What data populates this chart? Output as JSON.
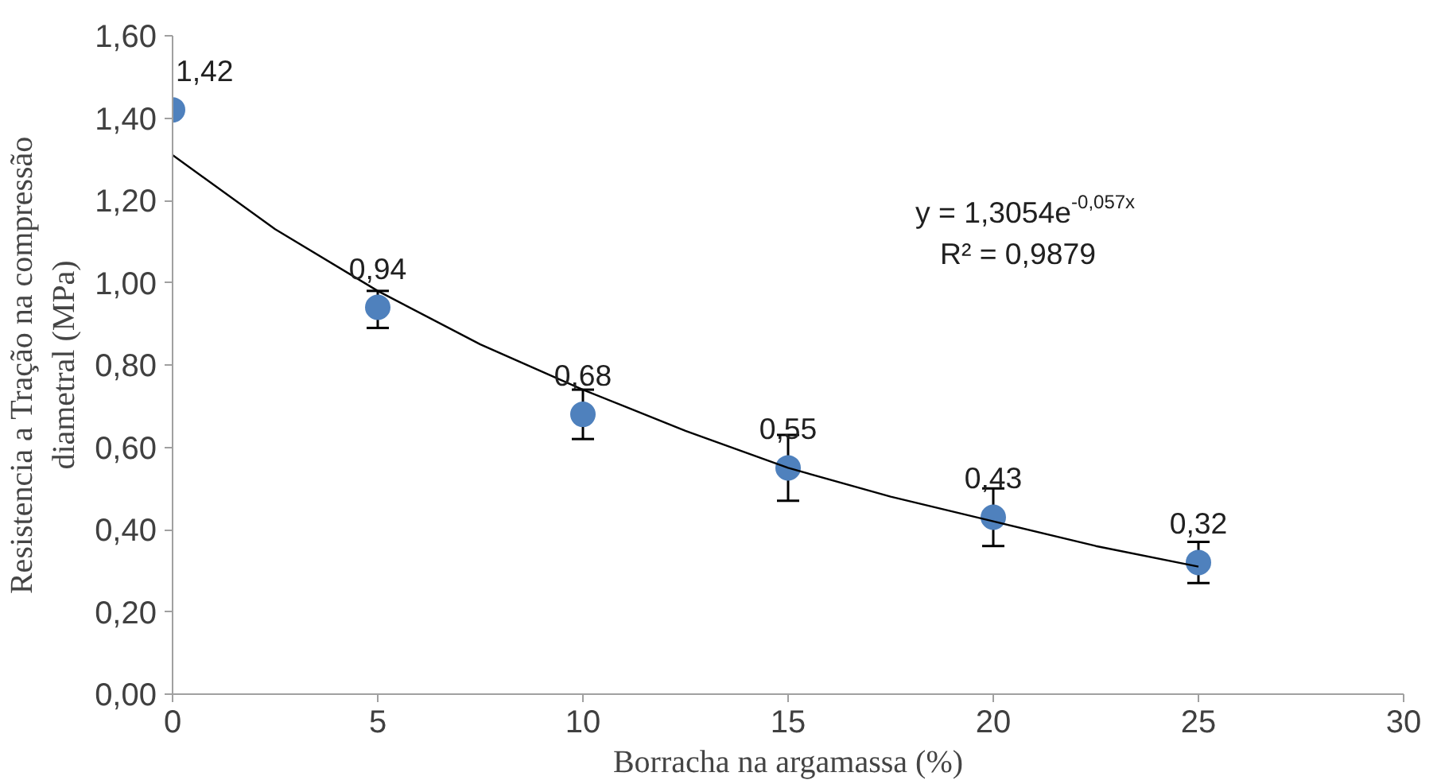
{
  "chart_data": {
    "type": "scatter",
    "xlabel": "Borracha na argamassa (%)",
    "ylabel": "Resistencia a Tração na compressão\ndiametral (MPa)",
    "x": [
      0,
      5,
      10,
      15,
      20,
      25
    ],
    "series": [
      {
        "color": "#4f81bd",
        "marker": "circle",
        "values": [
          1.42,
          0.94,
          0.68,
          0.55,
          0.43,
          0.32
        ],
        "value_labels": [
          "1,42",
          "0,94",
          "0,68",
          "0,55",
          "0,43",
          "0,32"
        ],
        "errors": [
          null,
          [
            0.89,
            0.98
          ],
          [
            0.62,
            0.74
          ],
          [
            0.47,
            0.63
          ],
          [
            0.36,
            0.5
          ],
          [
            0.27,
            0.37
          ]
        ]
      },
      {
        "type": "line",
        "marker": "none",
        "color": "#000000",
        "x": [
          0,
          2.5,
          5,
          7.5,
          10,
          12.5,
          15,
          17.5,
          20,
          22.5,
          25
        ],
        "values": [
          1.31,
          1.13,
          0.98,
          0.85,
          0.74,
          0.64,
          0.55,
          0.48,
          0.42,
          0.36,
          0.31
        ]
      }
    ],
    "grid": false,
    "xlim": [
      0,
      30
    ],
    "ylim": [
      0,
      1.6
    ],
    "xticks": [
      0,
      5,
      10,
      15,
      20,
      25,
      30
    ],
    "yticks": [
      {
        "value": 0,
        "label": "0,00"
      },
      {
        "value": 0.2,
        "label": "0,20"
      },
      {
        "value": 0.4,
        "label": "0,40"
      },
      {
        "value": 0.6,
        "label": "0,60"
      },
      {
        "value": 0.8,
        "label": "0,80"
      },
      {
        "value": 1.0,
        "label": "1,00"
      },
      {
        "value": 1.2,
        "label": "1,20"
      },
      {
        "value": 1.4,
        "label": "1,40"
      },
      {
        "value": 1.6,
        "label": "1,60"
      }
    ],
    "annotations": [
      "y = 1,3054e$^{-0,057x}$",
      "R² = 0,9879"
    ]
  }
}
